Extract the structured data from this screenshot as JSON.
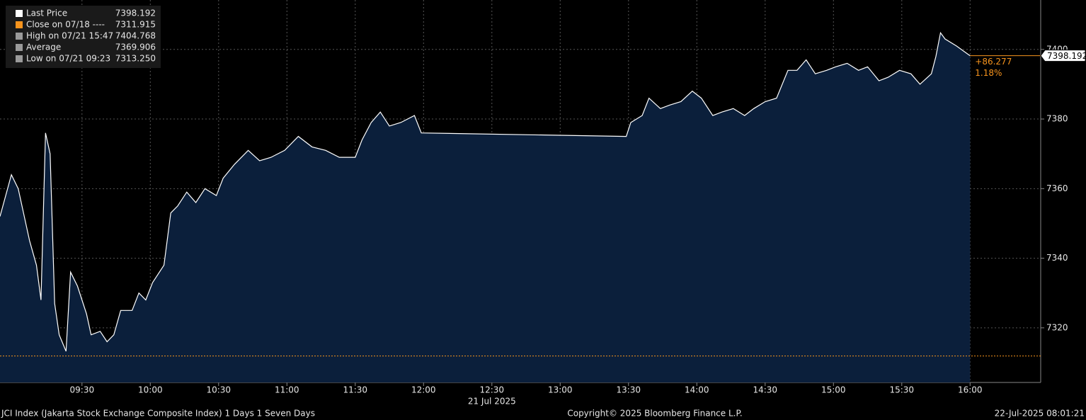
{
  "chart_data": {
    "type": "line",
    "x": [
      "08:54",
      "08:59",
      "09:02",
      "09:07",
      "09:10",
      "09:12",
      "09:14",
      "09:16",
      "09:18",
      "09:20",
      "09:23",
      "09:25",
      "09:28",
      "09:32",
      "09:34",
      "09:38",
      "09:41",
      "09:44",
      "09:47",
      "09:52",
      "09:55",
      "09:58",
      "10:01",
      "10:06",
      "10:09",
      "10:12",
      "10:16",
      "10:20",
      "10:24",
      "10:29",
      "10:32",
      "10:37",
      "10:43",
      "10:48",
      "10:53",
      "10:59",
      "11:05",
      "11:11",
      "11:17",
      "11:23",
      "11:30",
      "11:33",
      "11:37",
      "11:41",
      "11:45",
      "11:50",
      "11:56",
      "11:59",
      "13:29",
      "13:31",
      "13:36",
      "13:39",
      "13:44",
      "13:48",
      "13:53",
      "13:58",
      "14:02",
      "14:07",
      "14:11",
      "14:16",
      "14:21",
      "14:25",
      "14:30",
      "14:35",
      "14:40",
      "14:44",
      "14:48",
      "14:52",
      "14:57",
      "15:01",
      "15:06",
      "15:11",
      "15:15",
      "15:20",
      "15:24",
      "15:29",
      "15:34",
      "15:38",
      "15:43",
      "15:45",
      "15:47",
      "15:49",
      "15:54",
      "16:00"
    ],
    "series": [
      {
        "name": "Last Price",
        "color": "#ffffff",
        "fill": "#0b1f3b",
        "values": [
          7352,
          7364,
          7360,
          7345,
          7338,
          7328,
          7376,
          7370,
          7327,
          7318,
          7313.25,
          7336,
          7332,
          7324,
          7318,
          7319,
          7316,
          7318,
          7325,
          7325,
          7330,
          7328,
          7333,
          7338,
          7353,
          7355,
          7359,
          7356,
          7360,
          7358,
          7363,
          7367,
          7371,
          7368,
          7369,
          7371,
          7375,
          7372,
          7371,
          7369,
          7369,
          7374,
          7379,
          7382,
          7378,
          7379,
          7381,
          7376,
          7375,
          7379,
          7381,
          7386,
          7383,
          7384,
          7385,
          7388,
          7386,
          7381,
          7382,
          7383,
          7381,
          7383,
          7385,
          7386,
          7394,
          7394,
          7397,
          7393,
          7394,
          7395,
          7396,
          7394,
          7395,
          7391,
          7392,
          7394,
          7393,
          7390,
          7393,
          7398,
          7404.768,
          7403,
          7401,
          7398.192
        ]
      }
    ],
    "close_value": 7311.915,
    "close_color": "#f7941d",
    "xlim": [
      "08:54",
      "16:31"
    ],
    "xticks": [
      "09:30",
      "10:00",
      "10:30",
      "11:00",
      "11:30",
      "12:00",
      "12:30",
      "13:00",
      "13:30",
      "14:00",
      "14:30",
      "15:00",
      "15:30",
      "16:00"
    ],
    "ylim": [
      7304.3,
      7414.2
    ],
    "yticks": [
      7320,
      7340,
      7360,
      7380,
      7400
    ],
    "grid": true,
    "date_label": "21 Jul 2025",
    "legend": [
      {
        "label": "Last Price",
        "value": "7398.192",
        "color": "#ffffff"
      },
      {
        "label": "Close on 07/18 ----",
        "value": "7311.915",
        "color": "#f7941d"
      },
      {
        "label": "High on 07/21 15:47",
        "value": "7404.768",
        "color": "#9a9a9a"
      },
      {
        "label": "Average",
        "value": "7369.906",
        "color": "#9a9a9a"
      },
      {
        "label": "Low on 07/21 09:23",
        "value": "7313.250",
        "color": "#9a9a9a"
      }
    ],
    "change": "+86.277",
    "change_pct": "1.18%",
    "footer": {
      "left": "JCI Index (Jakarta Stock Exchange Composite Index) 1 Days 1 Seven Days",
      "center": "Copyright© 2025 Bloomberg Finance L.P.",
      "right": "22-Jul-2025 08:01:21"
    }
  }
}
